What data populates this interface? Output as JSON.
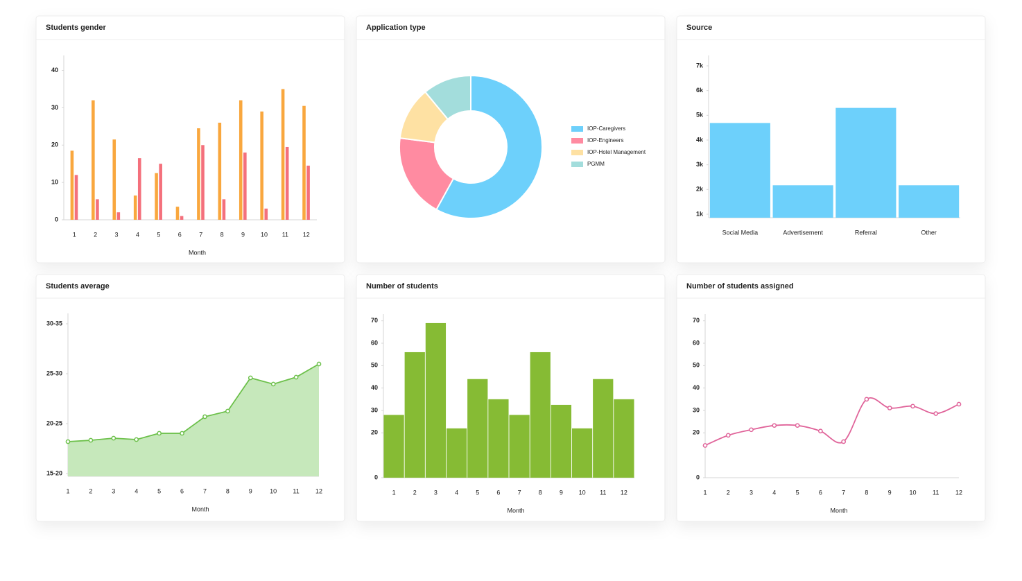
{
  "chart_data": [
    {
      "type": "bar",
      "title": "Students gender",
      "x_label": "Month",
      "categories": [
        "1",
        "2",
        "3",
        "4",
        "5",
        "6",
        "7",
        "8",
        "9",
        "10",
        "11",
        "12"
      ],
      "series": [
        {
          "color": "#f9a73e",
          "values": [
            18.5,
            32,
            21.5,
            6.5,
            12.5,
            3.5,
            24.5,
            26,
            32,
            29,
            35,
            30.5
          ]
        },
        {
          "color": "#f4707c",
          "values": [
            12,
            5.5,
            2,
            16.5,
            15,
            1,
            20,
            5.5,
            18,
            3,
            19.5,
            14.5
          ]
        }
      ],
      "ylim": [
        0,
        44
      ],
      "yticks": [
        0,
        10,
        20,
        30,
        40
      ]
    },
    {
      "type": "pie",
      "title": "Application type",
      "categories": [
        "IOP-Caregivers",
        "IOP-Engineers",
        "IOP-Hotel Management",
        "PGMM"
      ],
      "values": [
        58,
        19,
        12,
        11
      ],
      "colors": [
        "#6dd0fb",
        "#ff8ba1",
        "#fee1a3",
        "#a3dddc"
      ],
      "legend": "right"
    },
    {
      "type": "bar",
      "title": "Source",
      "categories": [
        "Social Media",
        "Advertisement",
        "Referral",
        "Other"
      ],
      "values": [
        4690,
        2170,
        5300,
        2170
      ],
      "color": "#6dd0fb",
      "ylim": [
        860,
        7420
      ],
      "yticks": [
        {
          "value": 1000,
          "label": "1k"
        },
        {
          "value": 2000,
          "label": "2k"
        },
        {
          "value": 3000,
          "label": "3k"
        },
        {
          "value": 4000,
          "label": "4k"
        },
        {
          "value": 5000,
          "label": "5k"
        },
        {
          "value": 6000,
          "label": "6k"
        },
        {
          "value": 7000,
          "label": "7k"
        }
      ]
    },
    {
      "type": "area",
      "title": "Students average",
      "x_label": "Month",
      "categories": [
        "1",
        "2",
        "3",
        "4",
        "5",
        "6",
        "7",
        "8",
        "9",
        "10",
        "11",
        "12"
      ],
      "values": [
        18.19,
        18.33,
        18.54,
        18.4,
        19.03,
        19.03,
        20.69,
        21.25,
        24.58,
        23.96,
        24.65,
        25.97
      ],
      "color": "#6cc04a",
      "fill": "#c6e8bb",
      "ylim": [
        14.72,
        31.04
      ],
      "yticks": [
        {
          "value": 15,
          "label": "15-20"
        },
        {
          "value": 20,
          "label": "20-25"
        },
        {
          "value": 25,
          "label": "25-30"
        },
        {
          "value": 30,
          "label": "30-35"
        }
      ]
    },
    {
      "type": "bar",
      "title": "Number of students",
      "x_label": "Month",
      "categories": [
        "1",
        "2",
        "3",
        "4",
        "5",
        "6",
        "7",
        "8",
        "9",
        "10",
        "11",
        "12"
      ],
      "values": [
        28,
        56,
        69,
        22,
        44,
        35,
        28,
        56,
        32.5,
        22,
        44,
        35
      ],
      "color": "#86bb34",
      "ylim": [
        0,
        73
      ],
      "yticks": [
        0,
        20,
        30,
        40,
        50,
        60,
        70
      ]
    },
    {
      "type": "line",
      "title": "Number of students assigned",
      "x_label": "Month",
      "smooth": true,
      "categories": [
        "1",
        "2",
        "3",
        "4",
        "5",
        "6",
        "7",
        "8",
        "9",
        "10",
        "11",
        "12"
      ],
      "values": [
        14.4,
        18.9,
        21.4,
        23.3,
        23.3,
        20.8,
        16.1,
        35,
        31.1,
        31.9,
        28.6,
        32.8
      ],
      "color": "#e0649a",
      "ylim": [
        0,
        73
      ],
      "yticks": [
        0,
        20,
        30,
        40,
        50,
        60,
        70
      ]
    }
  ]
}
